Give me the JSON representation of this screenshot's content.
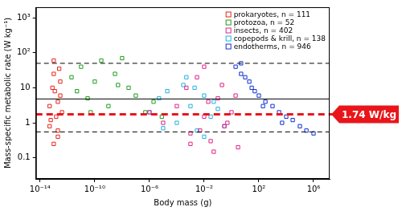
{
  "chart_data": {
    "type": "scatter",
    "x_label": "Body mass (g)",
    "y_label": "Mass-specific metabolic rate (W kg⁻¹)",
    "log": true,
    "grid": false,
    "legend": "upper right",
    "xlim": [
      5e-15,
      15000000.0
    ],
    "ylim": [
      0.025,
      2000
    ],
    "xticks": [
      {
        "value": 1e-14,
        "label": "10⁻¹⁴"
      },
      {
        "value": 1e-10,
        "label": "10⁻¹⁰"
      },
      {
        "value": 1e-06,
        "label": "10⁻⁶"
      },
      {
        "value": 0.01,
        "label": "10⁻²"
      },
      {
        "value": 100,
        "label": "10²"
      },
      {
        "value": 1000000,
        "label": "10⁶"
      }
    ],
    "yticks": [
      0.1,
      1,
      10,
      {
        "value": 100,
        "label": "10²"
      },
      {
        "value": 1000,
        "label": "10³"
      }
    ],
    "series": [
      {
        "name": "prokaryotes, n = 111",
        "color": "#e8231a",
        "marker": "square",
        "x": [
          5e-14,
          8e-14,
          1e-13,
          1.5e-13,
          2e-13,
          3e-13,
          5e-14,
          1e-13,
          2e-13,
          4e-13,
          1e-13,
          3e-13,
          6e-14,
          2e-13,
          1.2e-13,
          2.5e-13
        ],
        "values": [
          3,
          10,
          25,
          1.5,
          0.4,
          6,
          0.8,
          60,
          4,
          2,
          0.25,
          15,
          1.2,
          0.6,
          8,
          35
        ]
      },
      {
        "name": "protozoa, n = 52",
        "color": "#1e9e1e",
        "marker": "square",
        "x": [
          2e-12,
          5e-12,
          1e-11,
          3e-11,
          1e-10,
          3e-10,
          1e-09,
          3e-09,
          1e-08,
          3e-08,
          1e-07,
          5e-07,
          2e-06,
          8e-06,
          5e-11,
          5e-09
        ],
        "values": [
          20,
          8,
          40,
          5,
          15,
          60,
          3,
          25,
          70,
          10,
          6,
          2,
          4,
          1.5,
          2,
          12
        ]
      },
      {
        "name": "insects, n = 402",
        "color": "#e0238c",
        "marker": "square",
        "x": [
          1e-06,
          1e-05,
          0.0001,
          0.0005,
          0.001,
          0.003,
          0.01,
          0.03,
          0.1,
          0.3,
          1,
          3,
          0.01,
          0.05,
          0.2,
          0.001,
          0.02,
          0.5,
          2,
          0.005
        ],
        "values": [
          2,
          1,
          3,
          10,
          0.5,
          20,
          1.5,
          0.3,
          5,
          0.8,
          2,
          0.2,
          40,
          0.15,
          12,
          0.25,
          4,
          1,
          6,
          0.6
        ]
      },
      {
        "name": "copepods & krill, n = 138",
        "color": "#20b4e0",
        "marker": "square",
        "x": [
          1e-06,
          5e-06,
          2e-05,
          0.0001,
          0.0003,
          0.001,
          0.003,
          0.01,
          0.03,
          0.1,
          0.3,
          0.0005,
          0.002,
          0.05,
          0.01,
          1e-05
        ],
        "values": [
          2,
          5,
          8,
          1,
          12,
          3,
          0.6,
          6,
          1.5,
          2.5,
          0.8,
          20,
          10,
          4,
          0.4,
          0.7
        ]
      },
      {
        "name": "endotherms, n = 946",
        "color": "#1030d0",
        "marker": "square",
        "x": [
          2,
          5,
          10,
          20,
          50,
          100,
          300,
          1000,
          3000,
          10000,
          30000,
          100000,
          300000,
          1000000,
          5,
          30,
          200,
          5000
        ],
        "values": [
          40,
          25,
          20,
          15,
          8,
          6,
          4,
          3,
          2,
          1.5,
          1.2,
          0.8,
          0.6,
          0.5,
          50,
          10,
          3,
          1
        ]
      }
    ],
    "annotations": [
      {
        "type": "hline",
        "value": 50,
        "color": "#000000",
        "line_style": "dashed"
      },
      {
        "type": "hline",
        "value": 4.8,
        "color": "#000000",
        "line_style": "solid"
      },
      {
        "type": "hline",
        "value": 0.55,
        "color": "#000000",
        "line_style": "dashed"
      },
      {
        "type": "hline",
        "value": 1.74,
        "color": "#e8161b",
        "line_style": "dashed",
        "label": "1.74 W/kg"
      }
    ]
  }
}
